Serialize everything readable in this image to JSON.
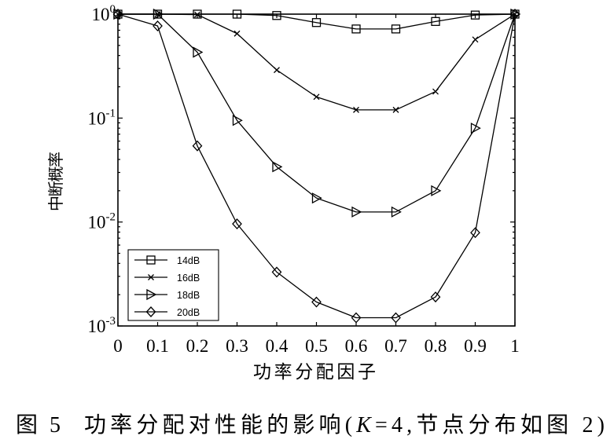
{
  "figure": {
    "caption_number": "图 5",
    "caption_before": "功率分配对性能的影响(",
    "caption_variable": "K",
    "caption_after": "=4,节点分布如图 2)"
  },
  "chart_data": {
    "type": "line",
    "title": "",
    "xlabel": "功率分配因子",
    "ylabel": "中断概率",
    "xscale": "linear",
    "yscale": "log",
    "xlim": [
      0,
      1
    ],
    "ylim": [
      0.001,
      1
    ],
    "xticks": [
      0,
      0.1,
      0.2,
      0.3,
      0.4,
      0.5,
      0.6,
      0.7,
      0.8,
      0.9,
      1
    ],
    "xtick_labels": [
      "0",
      "0.1",
      "0.2",
      "0.3",
      "0.4",
      "0.5",
      "0.6",
      "0.7",
      "0.8",
      "0.9",
      "1"
    ],
    "yticks": [
      1,
      0.1,
      0.01,
      0.001
    ],
    "ytick_labels": [
      {
        "base": "10",
        "exp": "0"
      },
      {
        "base": "10",
        "exp": "-1"
      },
      {
        "base": "10",
        "exp": "-2"
      },
      {
        "base": "10",
        "exp": "-3"
      }
    ],
    "grid": false,
    "legend_position": "bottom-left",
    "line_color": "#000000",
    "background_color": "#ffffff",
    "x": [
      0,
      0.1,
      0.2,
      0.3,
      0.4,
      0.5,
      0.6,
      0.7,
      0.8,
      0.9,
      1
    ],
    "series": [
      {
        "name": "14dB",
        "marker": "square",
        "values": [
          1,
          1,
          1,
          1,
          0.97,
          0.83,
          0.72,
          0.72,
          0.85,
          0.98,
          1
        ]
      },
      {
        "name": "16dB",
        "marker": "x",
        "values": [
          1,
          1,
          0.99,
          0.65,
          0.29,
          0.16,
          0.12,
          0.12,
          0.18,
          0.57,
          1
        ]
      },
      {
        "name": "18dB",
        "marker": "triangle-right",
        "values": [
          1,
          1,
          0.43,
          0.095,
          0.034,
          0.017,
          0.0125,
          0.0125,
          0.02,
          0.08,
          1
        ]
      },
      {
        "name": "20dB",
        "marker": "diamond",
        "values": [
          1,
          0.77,
          0.054,
          0.0096,
          0.0033,
          0.0017,
          0.0012,
          0.0012,
          0.0019,
          0.0079,
          1
        ]
      }
    ]
  }
}
